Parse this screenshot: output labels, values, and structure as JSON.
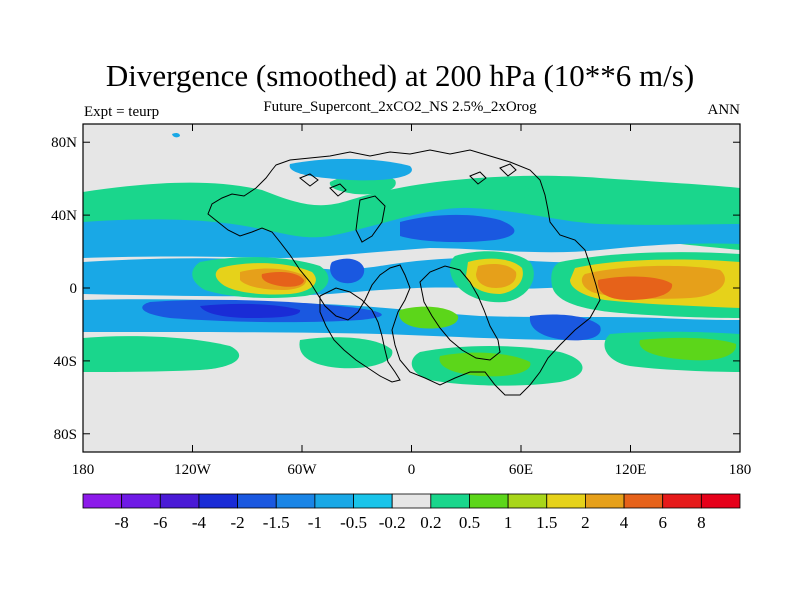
{
  "header": {
    "title": "Divergence (smoothed) at 200 hPa (10**6 m/s)",
    "subtitle": "Future_Supercont_2xCO2_NS 2.5%_2xOrog",
    "left_label": "Expt = teurp",
    "right_label": "ANN"
  },
  "map": {
    "type": "contour-map",
    "projection": "cylindrical-equidistant",
    "lon_range": [
      -180,
      180
    ],
    "lat_range": [
      -90,
      90
    ],
    "x_ticks": [
      {
        "lon": -180,
        "label": "180"
      },
      {
        "lon": -120,
        "label": "120W"
      },
      {
        "lon": -60,
        "label": "60W"
      },
      {
        "lon": 0,
        "label": "0"
      },
      {
        "lon": 60,
        "label": "60E"
      },
      {
        "lon": 120,
        "label": "120E"
      },
      {
        "lon": 180,
        "label": "180"
      }
    ],
    "y_ticks": [
      {
        "lat": 80,
        "label": "80N"
      },
      {
        "lat": 40,
        "label": "40N"
      },
      {
        "lat": 0,
        "label": "0"
      },
      {
        "lat": -40,
        "label": "40S"
      },
      {
        "lat": -80,
        "label": "80S"
      }
    ],
    "background_color": "#e6e6e6"
  },
  "colorbar": {
    "levels": [
      "-8",
      "-6",
      "-4",
      "-2",
      "-1.5",
      "-1",
      "-0.5",
      "-0.2",
      "0.2",
      "0.5",
      "1",
      "1.5",
      "2",
      "4",
      "6",
      "8"
    ],
    "colors": [
      "#8c1aea",
      "#6f1ae6",
      "#4a1ad6",
      "#1a2cd6",
      "#1a58e0",
      "#1a85e6",
      "#19a8e6",
      "#19c4ea",
      "#e6e6e6",
      "#1ad68c",
      "#5cd61a",
      "#a8d61a",
      "#e6d21a",
      "#e6a01a",
      "#e6621a",
      "#e61a1a",
      "#e6001a"
    ]
  }
}
